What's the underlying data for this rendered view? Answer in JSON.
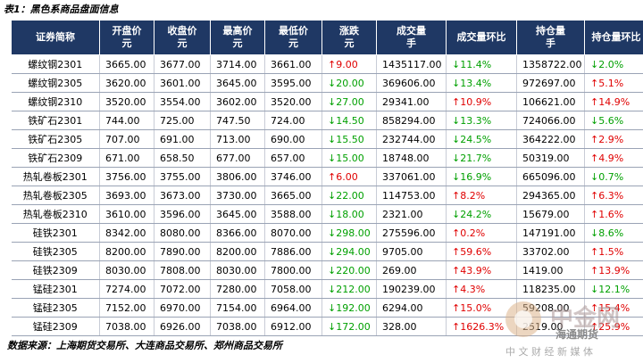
{
  "title": "表1：黑色系商品盘面信息",
  "table": {
    "columns": [
      {
        "label": "证券简称"
      },
      {
        "label": "开盘价",
        "unit": "元"
      },
      {
        "label": "收盘价",
        "unit": "元"
      },
      {
        "label": "最高价",
        "unit": "元"
      },
      {
        "label": "最低价",
        "unit": "元"
      },
      {
        "label": "涨跌",
        "unit": "元"
      },
      {
        "label": "成交量",
        "unit": "手"
      },
      {
        "label": "成交量环比"
      },
      {
        "label": "持仓量",
        "unit": "手"
      },
      {
        "label": "持仓量环比"
      }
    ],
    "rows": [
      [
        "螺纹钢2301",
        "3665.00",
        "3677.00",
        "3714.00",
        "3661.00",
        "↑9.00",
        "1435117.00",
        "↓11.4%",
        "1358722.00",
        "↓2.0%"
      ],
      [
        "螺纹钢2305",
        "3620.00",
        "3601.00",
        "3645.00",
        "3595.00",
        "↓20.00",
        "369606.00",
        "↓13.4%",
        "972697.00",
        "↑5.1%"
      ],
      [
        "螺纹钢2310",
        "3520.00",
        "3554.00",
        "3602.00",
        "3520.00",
        "↓27.00",
        "29341.00",
        "↑10.9%",
        "106621.00",
        "↑14.9%"
      ],
      [
        "铁矿石2301",
        "744.00",
        "725.00",
        "747.50",
        "724.00",
        "↓14.50",
        "858294.00",
        "↓13.3%",
        "724066.00",
        "↓5.6%"
      ],
      [
        "铁矿石2305",
        "707.00",
        "691.00",
        "713.00",
        "690.00",
        "↓15.50",
        "232744.00",
        "↓24.5%",
        "364222.00",
        "↑2.9%"
      ],
      [
        "铁矿石2309",
        "671.00",
        "658.50",
        "677.00",
        "657.00",
        "↓15.00",
        "18748.00",
        "↓21.7%",
        "50319.00",
        "↑4.9%"
      ],
      [
        "热轧卷板2301",
        "3756.00",
        "3755.00",
        "3806.00",
        "3746.00",
        "↑6.00",
        "337061.00",
        "↓16.9%",
        "665096.00",
        "↓0.7%"
      ],
      [
        "热轧卷板2305",
        "3693.00",
        "3673.00",
        "3730.00",
        "3665.00",
        "↓22.00",
        "114753.00",
        "↑8.2%",
        "294365.00",
        "↑6.3%"
      ],
      [
        "热轧卷板2310",
        "3610.00",
        "3596.00",
        "3645.00",
        "3588.00",
        "↓18.00",
        "2321.00",
        "↓24.2%",
        "15679.00",
        "↑1.6%"
      ],
      [
        "硅铁2301",
        "8342.00",
        "8080.00",
        "8366.00",
        "8070.00",
        "↓298.00",
        "275596.00",
        "↑0.2%",
        "147191.00",
        "↓8.6%"
      ],
      [
        "硅铁2305",
        "8200.00",
        "7890.00",
        "8200.00",
        "7886.00",
        "↓294.00",
        "9705.00",
        "↑59.6%",
        "33702.00",
        "↑1.5%"
      ],
      [
        "硅铁2309",
        "8030.00",
        "7808.00",
        "8030.00",
        "7800.00",
        "↓220.00",
        "269.00",
        "↑43.9%",
        "1419.00",
        "↑13.9%"
      ],
      [
        "锰硅2301",
        "7274.00",
        "7072.00",
        "7280.00",
        "7058.00",
        "↓212.00",
        "190239.00",
        "↑4.3%",
        "118235.00",
        "↓12.1%"
      ],
      [
        "锰硅2305",
        "7152.00",
        "6970.00",
        "7154.00",
        "6964.00",
        "↓192.00",
        "6294.00",
        "↑15.0%",
        "59208.00",
        "↑15.4%"
      ],
      [
        "锰硅2309",
        "7038.00",
        "6926.00",
        "7038.00",
        "6912.00",
        "↓172.00",
        "328.00",
        "↑1626.3%",
        "2519.00",
        "↑25.9%"
      ]
    ]
  },
  "source": "数据来源：上海期货交易所、大连商品交易所、郑州商品交易所",
  "watermark": [
    "中金网",
    "海通期货",
    "中 文 财 经 新 媒 体"
  ]
}
